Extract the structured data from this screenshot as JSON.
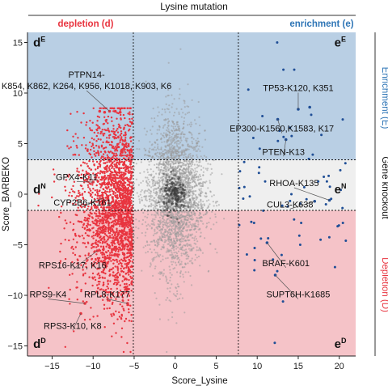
{
  "chart_data": {
    "type": "scatter",
    "title": "Lysine mutation",
    "xlabel": "Score_Lysine",
    "ylabel": "Score_BARBEKO",
    "xlim": [
      -18,
      22
    ],
    "ylim": [
      -16,
      16
    ],
    "xticks": [
      -15,
      -10,
      -5,
      0,
      5,
      10,
      15,
      20
    ],
    "yticks": [
      -15,
      -10,
      -5,
      0,
      5,
      10,
      15
    ],
    "x_thresholds": [
      -5.1,
      7.7
    ],
    "y_thresholds": [
      3.4,
      -1.6
    ],
    "colors": {
      "enrichment_band": "#b9cfe4",
      "neutral_band": "#efefef",
      "depletion_band": "#f5c3c8",
      "depletion_points": "#e8343f",
      "enrichment_points": "#1f4e96",
      "neutral_points": "#9a9a9a",
      "enrichment_text": "#2e75b6",
      "depletion_text": "#e8343f"
    },
    "top_labels": {
      "depletion": "depletion (d)",
      "enrichment": "enrichment (e)"
    },
    "side_labels": {
      "enrichment": "Enrichment (E)",
      "knockout": "Gene knockout",
      "depletion": "Depletion (D)"
    },
    "region_labels": [
      {
        "base": "d",
        "sup": "E",
        "x": -17.3,
        "y": 14.6
      },
      {
        "base": "e",
        "sup": "E",
        "x": 19.4,
        "y": 14.6
      },
      {
        "base": "d",
        "sup": "N",
        "x": -17.3,
        "y": 0.1
      },
      {
        "base": "e",
        "sup": "N",
        "x": 19.4,
        "y": 0.1
      },
      {
        "base": "d",
        "sup": "D",
        "x": -17.3,
        "y": -15.2
      },
      {
        "base": "e",
        "sup": "D",
        "x": 19.4,
        "y": -15.2
      }
    ],
    "annotations": [
      {
        "lines": [
          "PTPN14-",
          "K854, K862, K264, K956, K1018, K903, K6"
        ],
        "x": -10.8,
        "y": 10.4,
        "tx": -8.0,
        "ty": 8.2
      },
      {
        "lines": [
          "TP53-K120, K351"
        ],
        "x": 15.0,
        "y": 10.2,
        "tx": 15.0,
        "ty": 8.4
      },
      {
        "lines": [
          "EP300-K1560,K1583, K17"
        ],
        "x": 13.0,
        "y": 6.2,
        "tx": 12.5,
        "ty": 7.4
      },
      {
        "lines": [
          "PTEN-K13"
        ],
        "x": 13.2,
        "y": 3.9,
        "tx": 13.5,
        "ty": 5.4
      },
      {
        "lines": [
          "GPX4-K11"
        ],
        "x": -12.0,
        "y": 1.4,
        "tx": -10.0,
        "ty": 1.2
      },
      {
        "lines": [
          "CYP2B6-K161"
        ],
        "x": -11.3,
        "y": -1.1,
        "tx": -8.8,
        "ty": -0.4
      },
      {
        "lines": [
          "RHOA-K135"
        ],
        "x": 14.5,
        "y": 0.8,
        "tx": 18.8,
        "ty": -0.6
      },
      {
        "lines": [
          "CUL3-K638"
        ],
        "x": 14.0,
        "y": -1.3,
        "tx": 17.0,
        "ty": -0.7
      },
      {
        "lines": [
          "RPS16-K17, K16"
        ],
        "x": -12.5,
        "y": -7.3,
        "tx": -9.5,
        "ty": -5.6
      },
      {
        "lines": [
          "BRAF-K601"
        ],
        "x": 13.5,
        "y": -7.1,
        "tx": 11.2,
        "ty": -4.8
      },
      {
        "lines": [
          "RPS9-K4"
        ],
        "x": -15.5,
        "y": -10.2,
        "tx": -11.0,
        "ty": -10.8
      },
      {
        "lines": [
          "RPL8-K177"
        ],
        "x": -8.3,
        "y": -10.2,
        "tx": -5.8,
        "ty": -10.8
      },
      {
        "lines": [
          "SUPT6H-K1685"
        ],
        "x": 15.0,
        "y": -10.2,
        "tx": 12.2,
        "ty": -8.0
      },
      {
        "lines": [
          "RPS3-K10, K8"
        ],
        "x": -12.5,
        "y": -13.3,
        "tx": -11.5,
        "ty": -11.8
      }
    ],
    "labeled_points": [
      {
        "x": -8.0,
        "y": 8.2,
        "group": "depletion"
      },
      {
        "x": -8.6,
        "y": 8.1,
        "group": "depletion"
      },
      {
        "x": -7.3,
        "y": 8.2,
        "group": "depletion"
      },
      {
        "x": -6.7,
        "y": 8.1,
        "group": "depletion"
      },
      {
        "x": -9.2,
        "y": 8.2,
        "group": "depletion"
      },
      {
        "x": -10.0,
        "y": 1.2,
        "group": "depletion"
      },
      {
        "x": -8.8,
        "y": -0.4,
        "group": "depletion"
      },
      {
        "x": -9.5,
        "y": -5.6,
        "group": "depletion"
      },
      {
        "x": -11.0,
        "y": -10.8,
        "group": "depletion"
      },
      {
        "x": -5.8,
        "y": -10.8,
        "group": "depletion"
      },
      {
        "x": -11.5,
        "y": -11.8,
        "group": "depletion"
      },
      {
        "x": 15.0,
        "y": 8.4,
        "group": "enrichment"
      },
      {
        "x": 16.4,
        "y": 8.6,
        "group": "enrichment"
      },
      {
        "x": 12.5,
        "y": 7.4,
        "group": "enrichment"
      },
      {
        "x": 13.5,
        "y": 5.4,
        "group": "enrichment"
      },
      {
        "x": 18.8,
        "y": -0.6,
        "group": "enrichment"
      },
      {
        "x": 17.0,
        "y": -0.7,
        "group": "enrichment"
      },
      {
        "x": 11.2,
        "y": -4.8,
        "group": "enrichment"
      },
      {
        "x": 12.2,
        "y": -8.0,
        "group": "enrichment"
      }
    ],
    "background_points": {
      "description_counts": {
        "neutral": 2600,
        "depletion": 2300,
        "enrichment": 70
      }
    }
  }
}
